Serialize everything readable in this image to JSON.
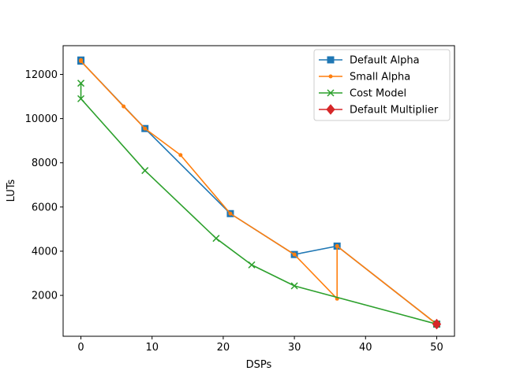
{
  "chart_data": {
    "type": "line",
    "title": "",
    "xlabel": "DSPs",
    "ylabel": "LUTs",
    "xlim": [
      -2.5,
      52.5
    ],
    "ylim": [
      150,
      13300
    ],
    "xticks": [
      0,
      10,
      20,
      30,
      40,
      50
    ],
    "xtick_labels": [
      "0",
      "10",
      "20",
      "30",
      "40",
      "50"
    ],
    "yticks": [
      2000,
      4000,
      6000,
      8000,
      10000,
      12000
    ],
    "ytick_labels": [
      "2000",
      "4000",
      "6000",
      "8000",
      "10000",
      "12000"
    ],
    "grid": false,
    "legend_position": "top-right",
    "series": [
      {
        "name": "Default Alpha",
        "color": "#1f77b4",
        "marker": "square",
        "x": [
          0,
          0,
          9,
          21,
          30,
          36,
          50
        ],
        "y": [
          12650,
          12600,
          9550,
          5700,
          3850,
          4230,
          700
        ]
      },
      {
        "name": "Small Alpha",
        "color": "#ff7f0e",
        "marker": "point",
        "x": [
          0,
          0,
          6,
          9,
          14,
          21,
          30,
          36,
          36,
          50
        ],
        "y": [
          12650,
          12600,
          10550,
          9550,
          8350,
          5700,
          3850,
          1850,
          4230,
          700
        ]
      },
      {
        "name": "Cost Model",
        "color": "#2ca02c",
        "marker": "x",
        "x": [
          0,
          0,
          9,
          19,
          24,
          30,
          50
        ],
        "y": [
          11600,
          10900,
          7650,
          4580,
          3380,
          2430,
          700
        ]
      },
      {
        "name": "Default Multiplier",
        "color": "#d62728",
        "marker": "diamond",
        "x": [
          50
        ],
        "y": [
          700
        ]
      }
    ]
  }
}
